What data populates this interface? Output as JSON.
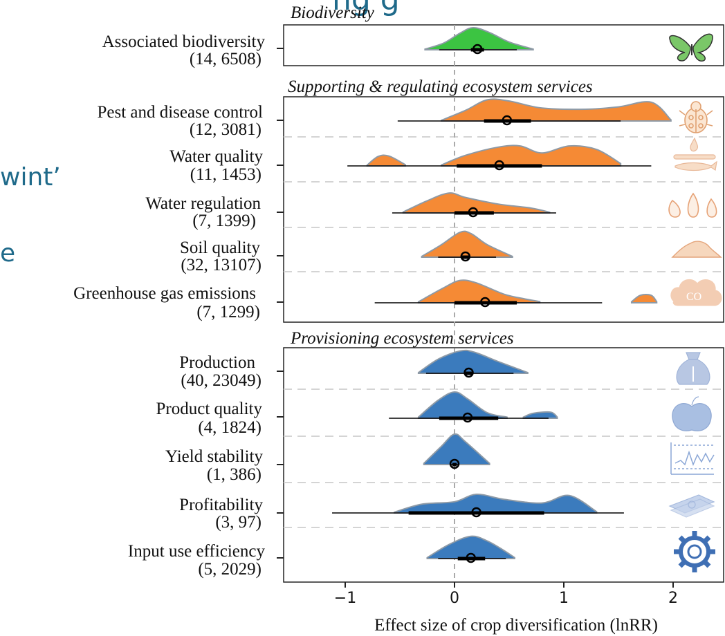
{
  "background_text": {
    "top_fragment": "ng  g",
    "left_fragment_1": "wint’",
    "left_fragment_2": "e"
  },
  "chart_data": {
    "type": "ridgeline",
    "xlabel": "Effect size of crop diversification (lnRR)",
    "xlim": [
      -1.5,
      2.4
    ],
    "x_ticks": [
      -1,
      0,
      1,
      2
    ],
    "x_tick_labels": [
      "−1",
      "0",
      "1",
      "2"
    ],
    "reference_line": 0,
    "grid": "dashed horizontal between rows",
    "colors": {
      "Biodiversity": "#3cc442",
      "Supporting & regulating ecosystem services": "#f58a35",
      "Provisioning ecosystem services": "#3b7bbd",
      "outline": "#8e9aa6"
    },
    "groups": [
      {
        "title": "Biodiversity",
        "icon": "butterfly-icon",
        "rows": [
          {
            "label": "Associated biodiversity",
            "counts": "(14, 6508)",
            "estimate": 0.21,
            "ci_inner": [
              0.15,
              0.27
            ],
            "ci_outer": [
              -0.14,
              0.57
            ],
            "density": [
              [
                -0.27,
                0.03
              ],
              [
                -0.1,
                0.3
              ],
              [
                0.05,
                0.75
              ],
              [
                0.17,
                1.0
              ],
              [
                0.32,
                0.78
              ],
              [
                0.5,
                0.35
              ],
              [
                0.72,
                0.03
              ]
            ]
          }
        ]
      },
      {
        "title": "Supporting & regulating ecosystem services",
        "rows": [
          {
            "label": "Pest and disease control",
            "counts": "(12, 3081)",
            "estimate": 0.48,
            "ci_inner": [
              0.27,
              0.7
            ],
            "ci_outer": [
              -0.52,
              1.52
            ],
            "icon": "ladybug-icon",
            "density": [
              [
                -0.12,
                0.03
              ],
              [
                0.1,
                0.45
              ],
              [
                0.3,
                0.9
              ],
              [
                0.5,
                0.85
              ],
              [
                0.8,
                0.55
              ],
              [
                1.2,
                0.5
              ],
              [
                1.5,
                0.6
              ],
              [
                1.8,
                0.8
              ],
              [
                1.98,
                0.05
              ]
            ]
          },
          {
            "label": "Water quality",
            "counts": "(11, 1453)",
            "estimate": 0.41,
            "ci_inner": [
              0.02,
              0.8
            ],
            "ci_outer": [
              -0.98,
              1.8
            ],
            "icon": "water-quality-icon",
            "segments": [
              [
                [
                  -0.8,
                  0.03
                ],
                [
                  -0.7,
                  0.4
                ],
                [
                  -0.6,
                  0.42
                ],
                [
                  -0.45,
                  0.05
                ]
              ],
              [
                [
                  -0.12,
                  0.04
                ],
                [
                  0.1,
                  0.45
                ],
                [
                  0.4,
                  0.8
                ],
                [
                  0.6,
                  0.85
                ],
                [
                  0.8,
                  0.55
                ],
                [
                  1.05,
                  0.85
                ],
                [
                  1.3,
                  0.7
                ],
                [
                  1.52,
                  0.1
                ]
              ]
            ]
          },
          {
            "label": "Water regulation",
            "counts": "(7, 1399)",
            "estimate": 0.17,
            "ci_inner": [
              0.0,
              0.36
            ],
            "ci_outer": [
              -0.57,
              0.93
            ],
            "icon": "drops-icon",
            "density": [
              [
                -0.47,
                0.04
              ],
              [
                -0.25,
                0.55
              ],
              [
                -0.05,
                0.9
              ],
              [
                0.1,
                0.7
              ],
              [
                0.4,
                0.4
              ],
              [
                0.7,
                0.22
              ],
              [
                0.87,
                0.03
              ]
            ]
          },
          {
            "label": "Soil quality",
            "counts": "(32, 13107)",
            "estimate": 0.1,
            "ci_inner": [
              0.06,
              0.14
            ],
            "ci_outer": [
              -0.15,
              0.38
            ],
            "icon": "soil-icon",
            "density": [
              [
                -0.3,
                0.03
              ],
              [
                -0.12,
                0.5
              ],
              [
                0.05,
                1.0
              ],
              [
                0.15,
                0.95
              ],
              [
                0.3,
                0.5
              ],
              [
                0.53,
                0.03
              ]
            ]
          },
          {
            "label": "Greenhouse gas emissions",
            "counts": "(7, 1299)",
            "estimate": 0.28,
            "ci_inner": [
              0.0,
              0.57
            ],
            "ci_outer": [
              -0.73,
              1.35
            ],
            "icon": "co2-cloud-icon",
            "segments": [
              [
                [
                  -0.33,
                  0.04
                ],
                [
                  -0.1,
                  0.6
                ],
                [
                  0.05,
                  0.9
                ],
                [
                  0.2,
                  0.8
                ],
                [
                  0.45,
                  0.35
                ],
                [
                  0.65,
                  0.15
                ],
                [
                  0.78,
                  0.05
                ]
              ],
              [
                [
                  1.62,
                  0.04
                ],
                [
                  1.7,
                  0.3
                ],
                [
                  1.8,
                  0.3
                ],
                [
                  1.85,
                  0.04
                ]
              ]
            ]
          }
        ]
      },
      {
        "title": "Provisioning ecosystem services",
        "rows": [
          {
            "label": "Production",
            "counts": "(40, 23049)",
            "estimate": 0.13,
            "ci_inner": [
              0.1,
              0.17
            ],
            "ci_outer": [
              -0.26,
              0.54
            ],
            "icon": "grain-sack-icon",
            "density": [
              [
                -0.33,
                0.03
              ],
              [
                -0.15,
                0.6
              ],
              [
                0.05,
                0.95
              ],
              [
                0.18,
                0.9
              ],
              [
                0.4,
                0.5
              ],
              [
                0.67,
                0.03
              ]
            ]
          },
          {
            "label": "Product quality",
            "counts": "(4, 1824)",
            "estimate": 0.12,
            "ci_inner": [
              -0.14,
              0.4
            ],
            "ci_outer": [
              -0.6,
              0.86
            ],
            "icon": "apple-icon",
            "segments": [
              [
                [
                  -0.33,
                  0.04
                ],
                [
                  -0.15,
                  0.65
                ],
                [
                  0.0,
                  0.95
                ],
                [
                  0.12,
                  0.7
                ],
                [
                  0.3,
                  0.2
                ],
                [
                  0.48,
                  0.04
                ]
              ],
              [
                [
                  0.63,
                  0.04
                ],
                [
                  0.72,
                  0.18
                ],
                [
                  0.88,
                  0.22
                ],
                [
                  0.94,
                  0.04
                ]
              ]
            ]
          },
          {
            "label": "Yield stability",
            "counts": "(1, 386)",
            "estimate": 0.0,
            "ci_inner": [
              -0.02,
              0.02
            ],
            "ci_outer": [
              -0.03,
              0.03
            ],
            "icon": "stability-chart-icon",
            "density": [
              [
                -0.28,
                0.04
              ],
              [
                -0.12,
                0.6
              ],
              [
                0.0,
                1.0
              ],
              [
                0.1,
                0.75
              ],
              [
                0.32,
                0.04
              ]
            ]
          },
          {
            "label": "Profitability",
            "counts": "(3, 97)",
            "estimate": 0.2,
            "ci_inner": [
              -0.42,
              0.82
            ],
            "ci_outer": [
              -1.12,
              1.55
            ],
            "icon": "money-icon",
            "density": [
              [
                -0.55,
                0.03
              ],
              [
                -0.3,
                0.35
              ],
              [
                0.0,
                0.45
              ],
              [
                0.2,
                0.75
              ],
              [
                0.45,
                0.55
              ],
              [
                0.8,
                0.4
              ],
              [
                1.05,
                0.7
              ],
              [
                1.3,
                0.05
              ]
            ]
          },
          {
            "label": "Input use efficiency",
            "counts": "(5, 2029)",
            "estimate": 0.15,
            "ci_inner": [
              0.03,
              0.28
            ],
            "ci_outer": [
              -0.15,
              0.47
            ],
            "icon": "gear-icon",
            "density": [
              [
                -0.25,
                0.04
              ],
              [
                -0.05,
                0.6
              ],
              [
                0.15,
                0.95
              ],
              [
                0.3,
                0.75
              ],
              [
                0.45,
                0.35
              ],
              [
                0.55,
                0.04
              ]
            ]
          }
        ]
      }
    ]
  }
}
